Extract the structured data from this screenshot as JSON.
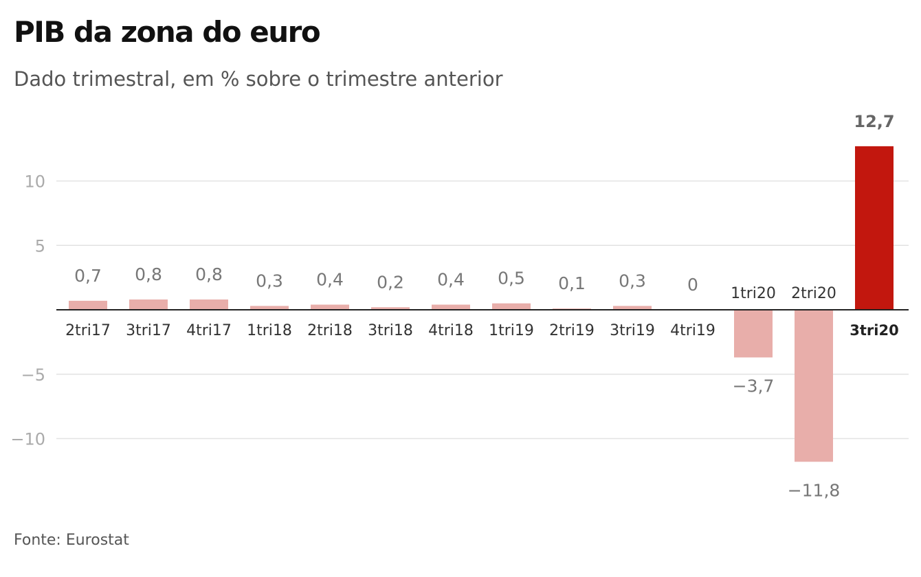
{
  "header": {
    "title": "PIB da zona do euro",
    "subtitle": "Dado trimestral, em % sobre o trimestre anterior"
  },
  "footer": {
    "source": "Fonte: Eurostat"
  },
  "colors": {
    "bar": "#e8aeaa",
    "highlight_bar": "#c2170e",
    "grid": "#e2e2e2",
    "baseline": "#222222",
    "tick_text": "#aaaaaa",
    "label_text": "#777777",
    "category_text": "#333333"
  },
  "chart_data": {
    "type": "bar",
    "title": "PIB da zona do euro",
    "subtitle": "Dado trimestral, em % sobre o trimestre anterior",
    "categories": [
      "2tri17",
      "3tri17",
      "4tri17",
      "1tri18",
      "2tri18",
      "3tri18",
      "4tri18",
      "1tri19",
      "2tri19",
      "3tri19",
      "4tri19",
      "1tri20",
      "2tri20",
      "3tri20"
    ],
    "values": [
      0.7,
      0.8,
      0.8,
      0.3,
      0.4,
      0.2,
      0.4,
      0.5,
      0.1,
      0.3,
      0,
      -3.7,
      -11.8,
      12.7
    ],
    "value_labels": [
      "0,7",
      "0,8",
      "0,8",
      "0,3",
      "0,4",
      "0,2",
      "0,4",
      "0,5",
      "0,1",
      "0,3",
      "0",
      "−3,7",
      "−11,8",
      "12,7"
    ],
    "highlight_index": 13,
    "y_ticks": [
      10,
      5,
      -5,
      -10
    ],
    "y_tick_labels": [
      "10",
      "5",
      "−5",
      "−10"
    ],
    "ylim": [
      -14,
      16
    ],
    "grid": true,
    "xlabel": "",
    "ylabel": ""
  }
}
